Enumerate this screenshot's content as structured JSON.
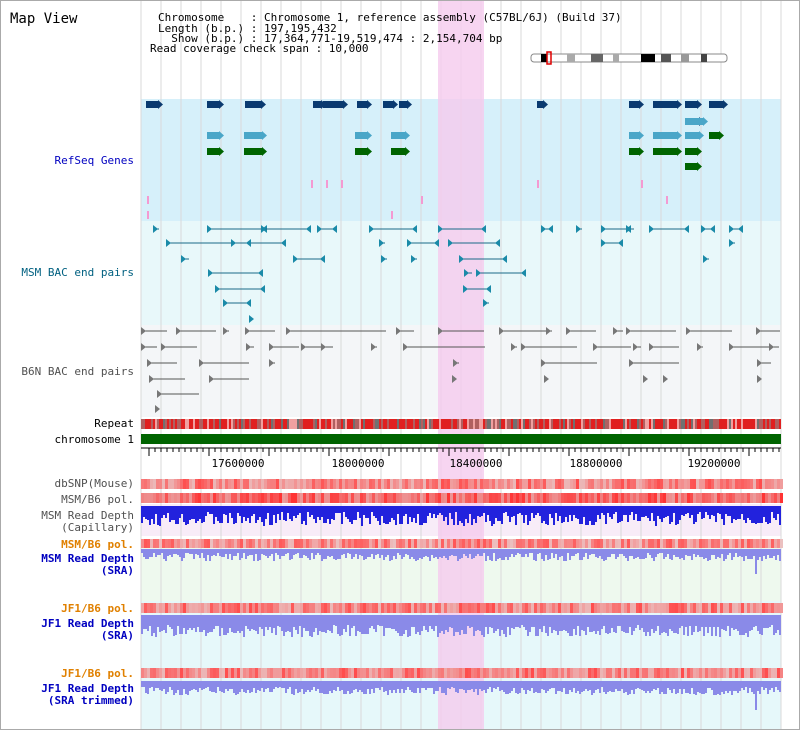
{
  "title": "Map View",
  "header": {
    "line1": "Chromosome    : Chromosome 1, reference assembly (C57BL/6J) (Build 37)",
    "line2": "Length (b.p.) : 197,195,432",
    "line3": "  Show (b.p.) : 17,364,771-19,519,474 : 2,154,704 bp",
    "line4": "Read coverage check span : 10,000"
  },
  "tracks": {
    "refseq": "RefSeq Genes",
    "msm_bac": "MSM BAC end pairs",
    "b6n_bac": "B6N BAC end pairs",
    "repeat": "Repeat",
    "chromosome": "chromosome 1",
    "dbsnp": "dbSNP(Mouse)",
    "msm_pol": "MSM/B6 pol.",
    "msm_depth_cap_1": "MSM Read Depth",
    "msm_depth_cap_2": "(Capillary)",
    "msm_pol2": "MSM/B6 pol.",
    "msm_depth_sra_1": "MSM Read Depth",
    "msm_depth_sra_2": "(SRA)",
    "jf1_pol": "JF1/B6 pol.",
    "jf1_depth_sra_1": "JF1 Read Depth",
    "jf1_depth_sra_2": "(SRA)",
    "jf1_pol2": "JF1/B6 pol.",
    "jf1_depth_trim_1": "JF1 Read Depth",
    "jf1_depth_trim_2": "(SRA trimmed)"
  },
  "axis": {
    "ticks": [
      "17600000",
      "18000000",
      "18400000",
      "18800000",
      "19200000"
    ]
  },
  "colors": {
    "refseq_bg": "#d6f0fa",
    "msm_bg": "#e8f8fa",
    "b6n_bg": "#f4f6f8",
    "highlight": "#f5d0ef",
    "chromosome": "#006400",
    "refseq_label": "#0000c0",
    "msm_label": "#006080",
    "b6n_label": "#505050",
    "pol_label": "#e08000",
    "depth_label": "#0000c0"
  }
}
